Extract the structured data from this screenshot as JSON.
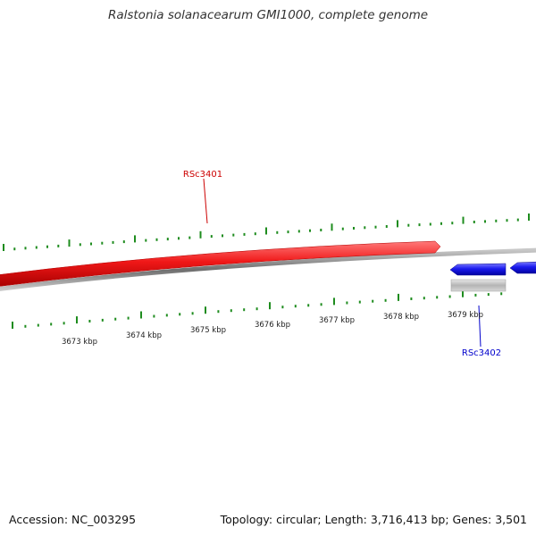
{
  "title": "Ralstonia solanacearum GMI1000, complete genome",
  "footer": {
    "accession": "Accession: NC_003295",
    "summary": "Topology: circular; Length: 3,716,413 bp; Genes: 3,501"
  },
  "colors": {
    "forward_gene": "#e81818",
    "reverse_gene": "#1a1aee",
    "backbone": "#888888",
    "ticks": "#1e8c1e",
    "feature_gray": "#bfbfbf",
    "label_forward": "#cc0000",
    "label_reverse": "#0000cc"
  },
  "scale_labels": [
    "3673 kbp",
    "3674 kbp",
    "3675 kbp",
    "3676 kbp",
    "3677 kbp",
    "3678 kbp",
    "3679 kbp"
  ],
  "genes": [
    {
      "name": "RSc3401",
      "strand": "forward"
    },
    {
      "name": "RSc3402",
      "strand": "reverse"
    }
  ]
}
